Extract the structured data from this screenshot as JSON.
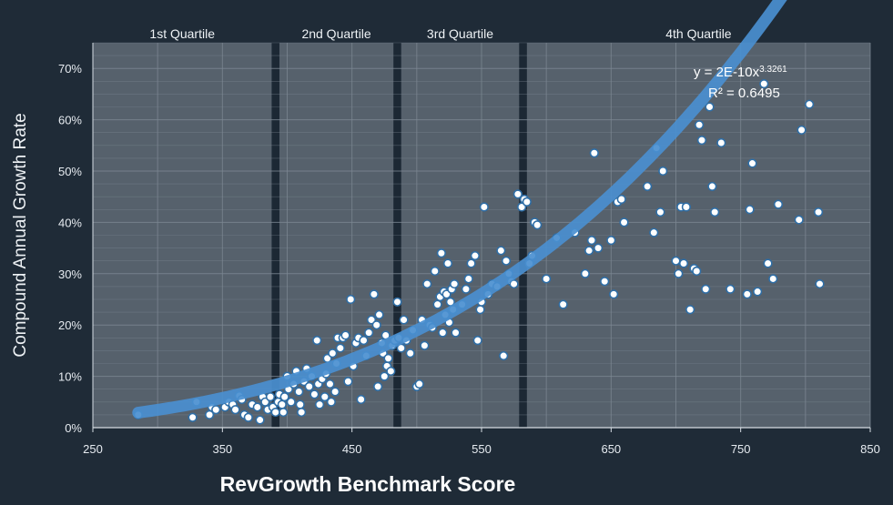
{
  "chart_data": {
    "type": "scatter",
    "xlabel": "RevGrowth Benchmark Score",
    "ylabel": "Compound Annual Growth Rate",
    "xlim": [
      250,
      850
    ],
    "ylim": [
      0,
      0.75
    ],
    "x_ticks": [
      250,
      350,
      450,
      550,
      650,
      750,
      850
    ],
    "x_tick_labels": [
      "250",
      "350",
      "450",
      "550",
      "650",
      "750",
      "850"
    ],
    "y_ticks": [
      0,
      0.1,
      0.2,
      0.3,
      0.4,
      0.5,
      0.6,
      0.7
    ],
    "y_tick_labels": [
      "0%",
      "10%",
      "20%",
      "30%",
      "40%",
      "50%",
      "60%",
      "70%"
    ],
    "grid": true,
    "quartiles": [
      {
        "label": "1st Quartile",
        "start": 250,
        "end": 388
      },
      {
        "label": "2nd Quartile",
        "start": 394,
        "end": 482
      },
      {
        "label": "3rd Quartile",
        "start": 488,
        "end": 579
      },
      {
        "label": "4th Quartile",
        "start": 585,
        "end": 850
      }
    ],
    "trendline": {
      "equation_prefix": "y = 2E-10x",
      "exponent": "3.3261",
      "r_squared": "R² = 0.6495",
      "coefficient": 2e-10,
      "power": 3.3261,
      "x_start": 285,
      "x_end": 805
    },
    "points": [
      [
        285,
        0.025
      ],
      [
        327,
        0.02
      ],
      [
        330,
        0.05
      ],
      [
        340,
        0.025
      ],
      [
        342,
        0.04
      ],
      [
        345,
        0.035
      ],
      [
        352,
        0.04
      ],
      [
        355,
        0.05
      ],
      [
        358,
        0.045
      ],
      [
        360,
        0.035
      ],
      [
        363,
        0.062
      ],
      [
        365,
        0.055
      ],
      [
        367,
        0.025
      ],
      [
        370,
        0.02
      ],
      [
        373,
        0.045
      ],
      [
        377,
        0.04
      ],
      [
        379,
        0.015
      ],
      [
        381,
        0.06
      ],
      [
        383,
        0.05
      ],
      [
        385,
        0.035
      ],
      [
        387,
        0.06
      ],
      [
        389,
        0.04
      ],
      [
        391,
        0.03
      ],
      [
        393,
        0.05
      ],
      [
        394,
        0.065
      ],
      [
        396,
        0.045
      ],
      [
        397,
        0.03
      ],
      [
        398,
        0.06
      ],
      [
        400,
        0.1
      ],
      [
        401,
        0.075
      ],
      [
        403,
        0.05
      ],
      [
        405,
        0.085
      ],
      [
        407,
        0.11
      ],
      [
        409,
        0.07
      ],
      [
        410,
        0.045
      ],
      [
        411,
        0.03
      ],
      [
        413,
        0.09
      ],
      [
        415,
        0.115
      ],
      [
        417,
        0.08
      ],
      [
        419,
        0.1
      ],
      [
        421,
        0.065
      ],
      [
        423,
        0.17
      ],
      [
        424,
        0.085
      ],
      [
        425,
        0.045
      ],
      [
        427,
        0.095
      ],
      [
        429,
        0.06
      ],
      [
        430,
        0.105
      ],
      [
        431,
        0.135
      ],
      [
        433,
        0.085
      ],
      [
        434,
        0.05
      ],
      [
        435,
        0.145
      ],
      [
        437,
        0.07
      ],
      [
        438,
        0.125
      ],
      [
        439,
        0.175
      ],
      [
        441,
        0.155
      ],
      [
        443,
        0.175
      ],
      [
        445,
        0.18
      ],
      [
        447,
        0.09
      ],
      [
        449,
        0.25
      ],
      [
        451,
        0.12
      ],
      [
        453,
        0.165
      ],
      [
        455,
        0.175
      ],
      [
        457,
        0.055
      ],
      [
        459,
        0.17
      ],
      [
        461,
        0.14
      ],
      [
        463,
        0.185
      ],
      [
        465,
        0.21
      ],
      [
        467,
        0.26
      ],
      [
        469,
        0.2
      ],
      [
        470,
        0.08
      ],
      [
        471,
        0.22
      ],
      [
        473,
        0.165
      ],
      [
        474,
        0.145
      ],
      [
        475,
        0.1
      ],
      [
        476,
        0.18
      ],
      [
        477,
        0.12
      ],
      [
        478,
        0.135
      ],
      [
        480,
        0.11
      ],
      [
        481,
        0.16
      ],
      [
        483,
        0.17
      ],
      [
        485,
        0.245
      ],
      [
        486,
        0.175
      ],
      [
        488,
        0.155
      ],
      [
        490,
        0.21
      ],
      [
        492,
        0.17
      ],
      [
        495,
        0.145
      ],
      [
        497,
        0.19
      ],
      [
        500,
        0.08
      ],
      [
        502,
        0.085
      ],
      [
        504,
        0.21
      ],
      [
        506,
        0.16
      ],
      [
        508,
        0.28
      ],
      [
        510,
        0.2
      ],
      [
        512,
        0.195
      ],
      [
        514,
        0.305
      ],
      [
        516,
        0.24
      ],
      [
        518,
        0.255
      ],
      [
        519,
        0.34
      ],
      [
        520,
        0.185
      ],
      [
        521,
        0.265
      ],
      [
        522,
        0.22
      ],
      [
        523,
        0.26
      ],
      [
        524,
        0.32
      ],
      [
        525,
        0.205
      ],
      [
        526,
        0.245
      ],
      [
        527,
        0.27
      ],
      [
        528,
        0.23
      ],
      [
        529,
        0.28
      ],
      [
        530,
        0.185
      ],
      [
        535,
        0.24
      ],
      [
        538,
        0.27
      ],
      [
        540,
        0.29
      ],
      [
        542,
        0.32
      ],
      [
        545,
        0.335
      ],
      [
        547,
        0.17
      ],
      [
        549,
        0.23
      ],
      [
        550,
        0.245
      ],
      [
        552,
        0.43
      ],
      [
        555,
        0.26
      ],
      [
        558,
        0.28
      ],
      [
        562,
        0.275
      ],
      [
        565,
        0.345
      ],
      [
        567,
        0.14
      ],
      [
        569,
        0.325
      ],
      [
        571,
        0.3
      ],
      [
        573,
        0.285
      ],
      [
        575,
        0.28
      ],
      [
        578,
        0.455
      ],
      [
        581,
        0.43
      ],
      [
        583,
        0.445
      ],
      [
        585,
        0.44
      ],
      [
        587,
        0.32
      ],
      [
        589,
        0.335
      ],
      [
        591,
        0.4
      ],
      [
        593,
        0.395
      ],
      [
        600,
        0.29
      ],
      [
        608,
        0.37
      ],
      [
        613,
        0.24
      ],
      [
        622,
        0.38
      ],
      [
        630,
        0.3
      ],
      [
        633,
        0.345
      ],
      [
        635,
        0.365
      ],
      [
        637,
        0.535
      ],
      [
        640,
        0.35
      ],
      [
        645,
        0.285
      ],
      [
        650,
        0.365
      ],
      [
        652,
        0.26
      ],
      [
        655,
        0.44
      ],
      [
        658,
        0.445
      ],
      [
        660,
        0.4
      ],
      [
        678,
        0.47
      ],
      [
        683,
        0.38
      ],
      [
        685,
        0.545
      ],
      [
        688,
        0.42
      ],
      [
        690,
        0.5
      ],
      [
        700,
        0.325
      ],
      [
        702,
        0.3
      ],
      [
        704,
        0.43
      ],
      [
        706,
        0.32
      ],
      [
        708,
        0.43
      ],
      [
        711,
        0.23
      ],
      [
        714,
        0.31
      ],
      [
        716,
        0.305
      ],
      [
        718,
        0.59
      ],
      [
        720,
        0.56
      ],
      [
        723,
        0.27
      ],
      [
        726,
        0.625
      ],
      [
        728,
        0.47
      ],
      [
        730,
        0.42
      ],
      [
        735,
        0.555
      ],
      [
        742,
        0.27
      ],
      [
        755,
        0.26
      ],
      [
        757,
        0.425
      ],
      [
        759,
        0.515
      ],
      [
        763,
        0.265
      ],
      [
        768,
        0.67
      ],
      [
        771,
        0.32
      ],
      [
        775,
        0.29
      ],
      [
        779,
        0.435
      ],
      [
        795,
        0.405
      ],
      [
        797,
        0.58
      ],
      [
        803,
        0.63
      ],
      [
        810,
        0.42
      ],
      [
        811,
        0.28
      ]
    ]
  }
}
